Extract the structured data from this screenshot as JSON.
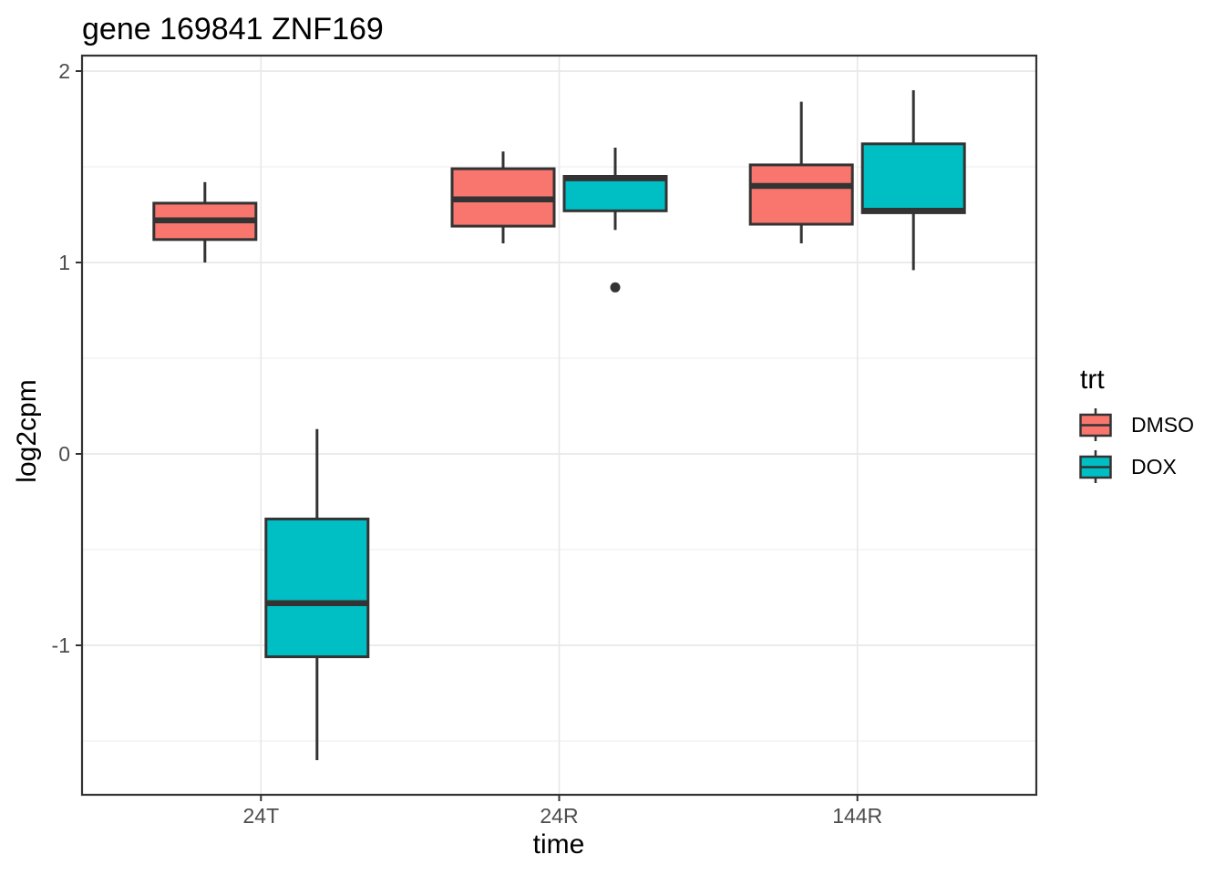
{
  "chart_data": {
    "type": "boxplot",
    "title": "gene 169841 ZNF169",
    "xlabel": "time",
    "ylabel": "log2cpm",
    "categories": [
      "24T",
      "24R",
      "144R"
    ],
    "y_axis": {
      "ticks": [
        2,
        1,
        0,
        -1
      ],
      "minor_ticks": [
        1.5,
        0.5,
        -0.5,
        -1.5
      ],
      "ylim": [
        -1.781,
        2.081
      ],
      "grid": true
    },
    "legend": {
      "title": "trt",
      "position": "right",
      "entries": [
        {
          "label": "DMSO",
          "color": "#F8766D"
        },
        {
          "label": "DOX",
          "color": "#00BFC4"
        }
      ]
    },
    "series": [
      {
        "name": "DMSO",
        "color": "#F8766D",
        "boxes": [
          {
            "category": "24T",
            "whisker_low": 1.0,
            "q1": 1.12,
            "median": 1.22,
            "q3": 1.31,
            "whisker_high": 1.42,
            "outliers": []
          },
          {
            "category": "24R",
            "whisker_low": 1.1,
            "q1": 1.19,
            "median": 1.33,
            "q3": 1.49,
            "whisker_high": 1.58,
            "outliers": []
          },
          {
            "category": "144R",
            "whisker_low": 1.1,
            "q1": 1.2,
            "median": 1.4,
            "q3": 1.51,
            "whisker_high": 1.84,
            "outliers": []
          }
        ]
      },
      {
        "name": "DOX",
        "color": "#00BFC4",
        "boxes": [
          {
            "category": "24T",
            "whisker_low": -1.6,
            "q1": -1.06,
            "median": -0.78,
            "q3": -0.34,
            "whisker_high": 0.13,
            "outliers": []
          },
          {
            "category": "24R",
            "whisker_low": 1.17,
            "q1": 1.27,
            "median": 1.44,
            "q3": 1.45,
            "whisker_high": 1.6,
            "outliers": [
              0.87
            ]
          },
          {
            "category": "144R",
            "whisker_low": 0.96,
            "q1": 1.26,
            "median": 1.27,
            "q3": 1.62,
            "whisker_high": 1.9,
            "outliers": []
          }
        ]
      }
    ],
    "style": {
      "box_stroke": "#333333",
      "median_stroke": "#333333",
      "outlier_color": "#333333",
      "panel_border": "#333333",
      "panel_bg": "#ffffff",
      "grid_major": "#E8E8E8",
      "grid_minor": "#F0F0F0",
      "tick_mark_color": "#333333",
      "tick_label_color": "#4D4D4D"
    }
  }
}
